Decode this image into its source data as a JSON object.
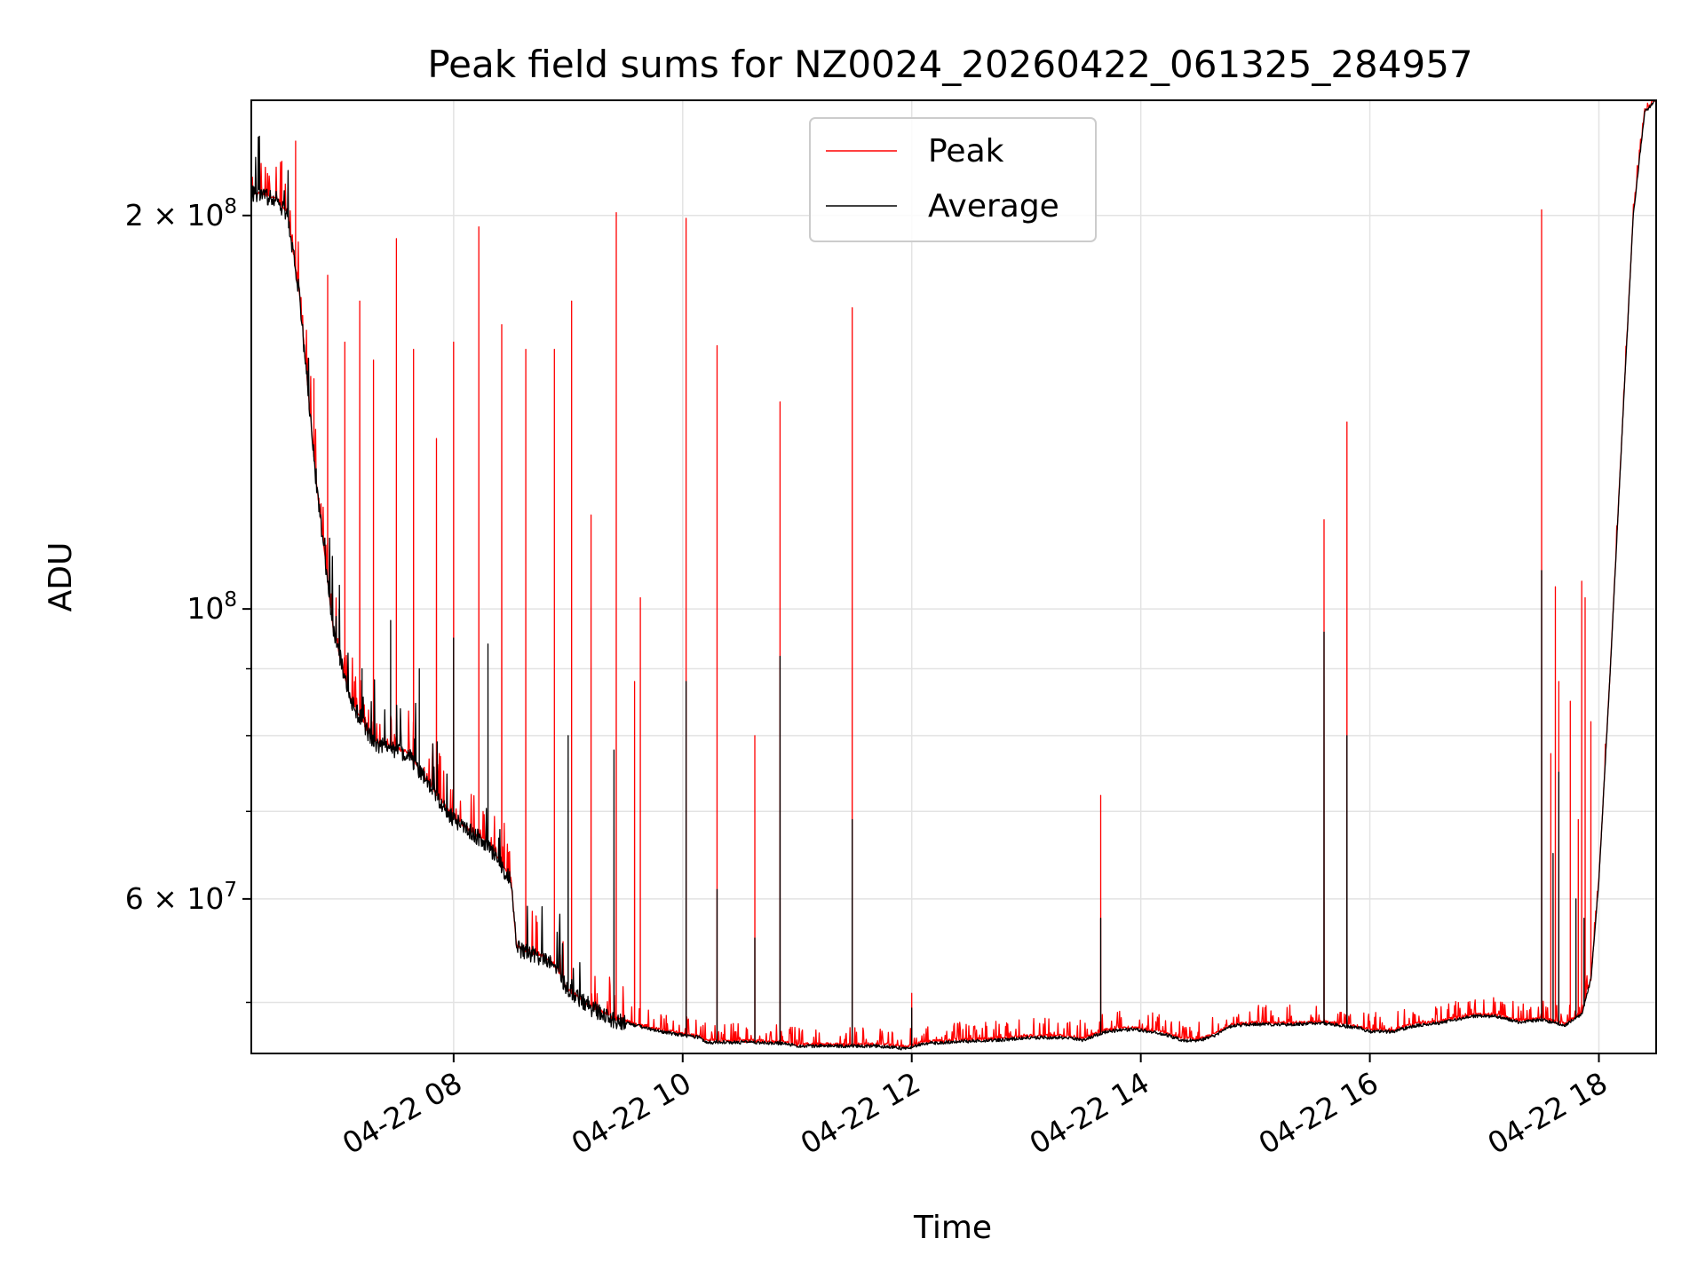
{
  "chart_data": {
    "type": "line",
    "title": "Peak field sums for NZ0024_20260422_061325_284957",
    "xlabel": "Time",
    "ylabel": "ADU",
    "yscale": "log",
    "ylim": [
      45700000,
      245000000
    ],
    "xlim_hours": [
      6.2333,
      18.5
    ],
    "grid": true,
    "legend_position": "top-center",
    "x_ticks": [
      {
        "value": 8,
        "label": "04-22 08"
      },
      {
        "value": 10,
        "label": "04-22 10"
      },
      {
        "value": 12,
        "label": "04-22 12"
      },
      {
        "value": 14,
        "label": "04-22 14"
      },
      {
        "value": 16,
        "label": "04-22 16"
      },
      {
        "value": 18,
        "label": "04-22 18"
      }
    ],
    "y_major_ticks": [
      {
        "value": 200000000,
        "base": "2 × 10",
        "exp": "8"
      },
      {
        "value": 100000000,
        "base": "10",
        "exp": "8"
      },
      {
        "value": 60000000,
        "base": "6 × 10",
        "exp": "7"
      }
    ],
    "y_minor_ticks": [
      50000000,
      70000000,
      80000000,
      90000000
    ],
    "baseline": [
      [
        6.2333,
        208000000
      ],
      [
        6.45,
        206000000
      ],
      [
        6.55,
        200000000
      ],
      [
        6.65,
        175000000
      ],
      [
        6.8,
        125000000
      ],
      [
        6.95,
        96000000
      ],
      [
        7.1,
        85000000
      ],
      [
        7.3,
        79000000
      ],
      [
        7.6,
        77500000
      ],
      [
        7.8,
        73000000
      ],
      [
        8.0,
        69000000
      ],
      [
        8.3,
        66000000
      ],
      [
        8.5,
        62000000
      ],
      [
        8.55,
        55000000
      ],
      [
        8.8,
        54000000
      ],
      [
        8.9,
        53000000
      ],
      [
        9.0,
        51000000
      ],
      [
        9.2,
        49500000
      ],
      [
        9.4,
        48500000
      ],
      [
        9.6,
        48000000
      ],
      [
        9.8,
        47500000
      ],
      [
        10.0,
        47200000
      ],
      [
        10.15,
        47000000
      ],
      [
        10.2,
        46600000
      ],
      [
        10.6,
        46600000
      ],
      [
        10.9,
        46500000
      ],
      [
        11.0,
        46300000
      ],
      [
        11.3,
        46300000
      ],
      [
        11.7,
        46300000
      ],
      [
        11.95,
        46100000
      ],
      [
        12.1,
        46500000
      ],
      [
        12.5,
        46700000
      ],
      [
        12.8,
        46800000
      ],
      [
        13.0,
        47000000
      ],
      [
        13.3,
        47000000
      ],
      [
        13.5,
        46800000
      ],
      [
        13.7,
        47500000
      ],
      [
        13.95,
        47700000
      ],
      [
        14.2,
        47300000
      ],
      [
        14.35,
        46800000
      ],
      [
        14.5,
        46700000
      ],
      [
        14.65,
        47200000
      ],
      [
        14.8,
        48000000
      ],
      [
        15.0,
        48100000
      ],
      [
        15.3,
        48100000
      ],
      [
        15.6,
        48200000
      ],
      [
        15.9,
        47800000
      ],
      [
        16.0,
        47500000
      ],
      [
        16.2,
        47500000
      ],
      [
        16.4,
        48000000
      ],
      [
        16.6,
        48200000
      ],
      [
        16.9,
        48800000
      ],
      [
        17.1,
        48800000
      ],
      [
        17.3,
        48300000
      ],
      [
        17.5,
        48500000
      ],
      [
        17.7,
        48000000
      ],
      [
        17.85,
        49000000
      ],
      [
        17.93,
        52000000
      ],
      [
        18.0,
        62000000
      ],
      [
        18.1,
        90000000
      ],
      [
        18.2,
        135000000
      ],
      [
        18.3,
        200000000
      ],
      [
        18.4,
        240000000
      ],
      [
        18.5,
        245000000
      ]
    ],
    "series": [
      {
        "name": "Peak",
        "color": "#ff0000",
        "spikes": [
          [
            6.5,
            220000000
          ],
          [
            6.62,
            228000000
          ],
          [
            6.78,
            150000000
          ],
          [
            6.9,
            180000000
          ],
          [
            7.05,
            160000000
          ],
          [
            7.18,
            172000000
          ],
          [
            7.3,
            155000000
          ],
          [
            7.5,
            192000000
          ],
          [
            7.65,
            158000000
          ],
          [
            7.85,
            135000000
          ],
          [
            8.0,
            160000000
          ],
          [
            8.22,
            196000000
          ],
          [
            8.42,
            165000000
          ],
          [
            8.63,
            158000000
          ],
          [
            8.88,
            158000000
          ],
          [
            9.03,
            172000000
          ],
          [
            9.2,
            118000000
          ],
          [
            9.42,
            201000000
          ],
          [
            9.58,
            88000000
          ],
          [
            9.63,
            102000000
          ],
          [
            10.03,
            199000000
          ],
          [
            10.3,
            159000000
          ],
          [
            10.63,
            80000000
          ],
          [
            10.85,
            144000000
          ],
          [
            11.48,
            170000000
          ],
          [
            12.0,
            50800000
          ],
          [
            13.65,
            72000000
          ],
          [
            15.6,
            117000000
          ],
          [
            15.8,
            139000000
          ],
          [
            17.5,
            202000000
          ],
          [
            17.58,
            77500000
          ],
          [
            17.62,
            104000000
          ],
          [
            17.65,
            88000000
          ],
          [
            17.75,
            85000000
          ],
          [
            17.82,
            69000000
          ],
          [
            17.85,
            105000000
          ],
          [
            17.88,
            102000000
          ],
          [
            17.93,
            82000000
          ]
        ]
      },
      {
        "name": "Average",
        "color": "#000000",
        "spikes": [
          [
            6.8,
            128000000
          ],
          [
            7.0,
            100000000
          ],
          [
            7.2,
            90000000
          ],
          [
            7.45,
            98000000
          ],
          [
            7.7,
            90000000
          ],
          [
            8.0,
            95000000
          ],
          [
            8.3,
            94000000
          ],
          [
            9.0,
            80000000
          ],
          [
            9.4,
            78000000
          ],
          [
            10.03,
            88000000
          ],
          [
            10.3,
            61000000
          ],
          [
            10.63,
            56000000
          ],
          [
            10.85,
            92000000
          ],
          [
            11.48,
            69000000
          ],
          [
            12.0,
            49500000
          ],
          [
            13.65,
            58000000
          ],
          [
            15.6,
            96000000
          ],
          [
            15.8,
            80000000
          ],
          [
            17.5,
            107000000
          ],
          [
            17.6,
            65000000
          ],
          [
            17.65,
            75000000
          ],
          [
            17.8,
            60000000
          ],
          [
            17.87,
            58000000
          ]
        ]
      }
    ]
  }
}
